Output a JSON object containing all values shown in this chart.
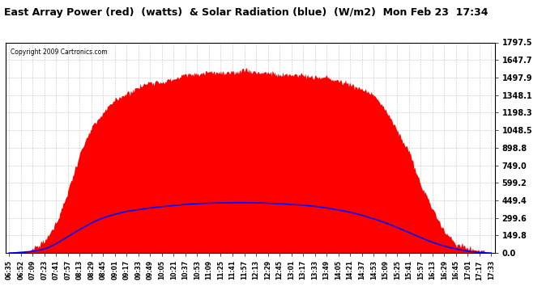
{
  "title": "East Array Power (red)  (watts)  & Solar Radiation (blue)  (W/m2)  Mon Feb 23  17:34",
  "copyright_text": "Copyright 2009 Cartronics.com",
  "bg_color": "#ffffff",
  "plot_bg_color": "#ffffff",
  "grid_color": "#aaaaaa",
  "red_color": "#ff0000",
  "blue_color": "#0000ff",
  "ymin": 0.0,
  "ymax": 1797.5,
  "yticks": [
    0.0,
    149.8,
    299.6,
    449.4,
    599.2,
    749.0,
    898.8,
    1048.5,
    1198.3,
    1348.1,
    1497.9,
    1647.7,
    1797.5
  ],
  "ytick_labels": [
    "0.0",
    "149.8",
    "299.6",
    "449.4",
    "599.2",
    "749.0",
    "898.8",
    "1048.5",
    "1198.3",
    "1348.1",
    "1497.9",
    "1647.7",
    "1797.5"
  ],
  "x_labels": [
    "06:35",
    "06:52",
    "07:09",
    "07:23",
    "07:41",
    "07:57",
    "08:13",
    "08:29",
    "08:45",
    "09:01",
    "09:17",
    "09:33",
    "09:49",
    "10:05",
    "10:21",
    "10:37",
    "10:53",
    "11:09",
    "11:25",
    "11:41",
    "11:57",
    "12:13",
    "12:29",
    "12:45",
    "13:01",
    "13:17",
    "13:33",
    "13:49",
    "14:05",
    "14:21",
    "14:37",
    "14:53",
    "15:09",
    "15:25",
    "15:41",
    "15:57",
    "16:13",
    "16:29",
    "16:45",
    "17:01",
    "17:17",
    "17:33"
  ],
  "red_data": [
    0,
    10,
    30,
    80,
    250,
    530,
    820,
    1050,
    1200,
    1300,
    1370,
    1420,
    1460,
    1490,
    1510,
    1530,
    1540,
    1545,
    1548,
    1550,
    1548,
    1545,
    1540,
    1535,
    1530,
    1520,
    1510,
    1495,
    1475,
    1450,
    1400,
    1330,
    1220,
    1060,
    850,
    600,
    380,
    210,
    100,
    40,
    10,
    0
  ],
  "blue_data": [
    0,
    5,
    15,
    35,
    80,
    140,
    200,
    255,
    300,
    330,
    355,
    370,
    385,
    395,
    405,
    415,
    420,
    425,
    428,
    430,
    430,
    428,
    425,
    420,
    415,
    408,
    398,
    385,
    368,
    348,
    322,
    292,
    258,
    218,
    175,
    132,
    92,
    60,
    35,
    16,
    5,
    0
  ],
  "title_fontsize": 9,
  "copyright_fontsize": 5.5,
  "ytick_fontsize": 7,
  "xtick_fontsize": 5.5
}
